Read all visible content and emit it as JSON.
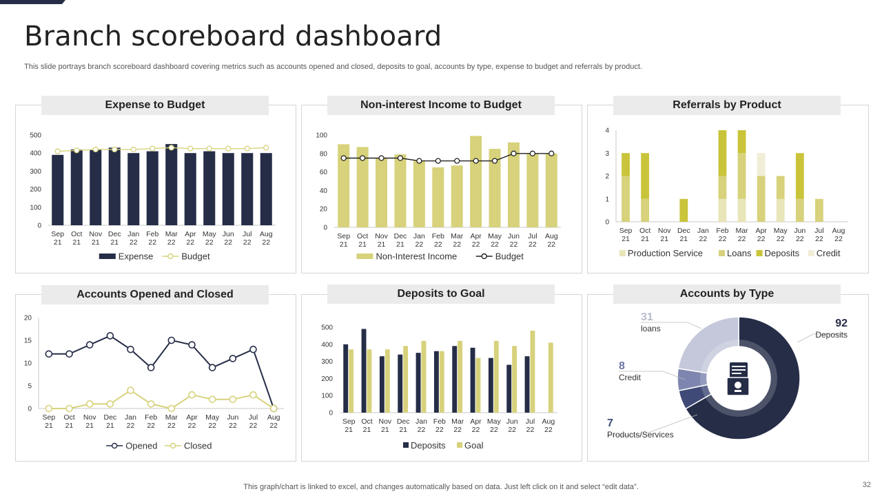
{
  "page": {
    "title": "Branch scoreboard dashboard",
    "subtitle": "This slide portrays branch scoreboard dashboard covering metrics such as accounts opened and closed, deposits to goal, accounts by type, expense to budget and referrals by product.",
    "footer": "This graph/chart is linked to excel, and changes automatically based on data. Just left click on it and select “edit data”.",
    "page_number": "32"
  },
  "colors": {
    "navy": "#252d47",
    "olive": "#c9c43a",
    "khaki": "#d7d27b",
    "pale": "#e8e5b8",
    "light": "#f0eed6",
    "grey": "#3d4255"
  },
  "panels": {
    "expense": {
      "heading": "Expense to Budget"
    },
    "income": {
      "heading": "Non-interest Income to Budget"
    },
    "referrals": {
      "heading": "Referrals by Product"
    },
    "accounts": {
      "heading": "Accounts Opened and Closed"
    },
    "deposits": {
      "heading": "Deposits to Goal"
    },
    "types": {
      "heading": "Accounts by Type",
      "icon": "document-icon"
    }
  },
  "chart_data": [
    {
      "id": "expense",
      "type": "bar",
      "title": "Expense to Budget",
      "categories": [
        "Sep 21",
        "Oct 21",
        "Nov 21",
        "Dec 21",
        "Jan 22",
        "Feb 22",
        "Mar 22",
        "Apr 22",
        "May 22",
        "Jun 22",
        "Jul 22",
        "Aug 22"
      ],
      "series": [
        {
          "name": "Expense",
          "kind": "bar",
          "values": [
            390,
            420,
            420,
            430,
            400,
            410,
            450,
            400,
            410,
            400,
            400,
            400
          ]
        },
        {
          "name": "Budget",
          "kind": "line",
          "values": [
            410,
            415,
            420,
            420,
            420,
            425,
            430,
            425,
            425,
            425,
            425,
            430
          ]
        }
      ],
      "ylim": [
        0,
        500
      ],
      "yticks": [
        0,
        100,
        200,
        300,
        400,
        500
      ]
    },
    {
      "id": "income",
      "type": "bar",
      "title": "Non-interest Income to Budget",
      "categories": [
        "Sep 21",
        "Oct 21",
        "Nov 21",
        "Dec 21",
        "Jan 22",
        "Feb 22",
        "Mar 22",
        "Apr 22",
        "May 22",
        "Jun 22",
        "Jul 22",
        "Aug 22"
      ],
      "series": [
        {
          "name": "Non-Interest Income",
          "kind": "bar",
          "values": [
            90,
            87,
            75,
            79,
            72,
            65,
            67,
            99,
            85,
            92,
            80,
            80
          ]
        },
        {
          "name": "Budget",
          "kind": "line",
          "values": [
            75,
            75,
            75,
            75,
            72,
            72,
            72,
            72,
            72,
            80,
            80,
            80
          ]
        }
      ],
      "ylim": [
        0,
        100
      ],
      "yticks": [
        0,
        20,
        40,
        60,
        80,
        100
      ]
    },
    {
      "id": "referrals",
      "type": "bar",
      "stacked": true,
      "title": "Referrals by Product",
      "categories": [
        "Sep 21",
        "Oct 21",
        "Nov 21",
        "Dec 21",
        "Jan 22",
        "Feb 22",
        "Mar 22",
        "Apr 22",
        "May 22",
        "Jun 22",
        "Jul 22",
        "Aug 22"
      ],
      "series": [
        {
          "name": "Production Service",
          "values": [
            0,
            0,
            0,
            0,
            0,
            1,
            1,
            0,
            1,
            0,
            0,
            0
          ]
        },
        {
          "name": "Loans",
          "values": [
            2,
            1,
            0,
            0,
            0,
            1,
            2,
            2,
            1,
            1,
            1,
            0
          ]
        },
        {
          "name": "Deposits",
          "values": [
            1,
            2,
            0,
            1,
            0,
            2,
            1,
            0,
            0,
            2,
            0,
            0
          ]
        },
        {
          "name": "Credit",
          "values": [
            0,
            0,
            0,
            0,
            0,
            0,
            0,
            1,
            0,
            0,
            0,
            0
          ]
        }
      ],
      "ylim": [
        0,
        4
      ],
      "yticks": [
        0,
        1,
        2,
        3,
        4
      ]
    },
    {
      "id": "accounts",
      "type": "line",
      "title": "Accounts Opened and Closed",
      "categories": [
        "Sep 21",
        "Oct 21",
        "Nov 21",
        "Dec 21",
        "Jan 22",
        "Feb 22",
        "Mar 22",
        "Apr 22",
        "May 22",
        "Jun 22",
        "Jul 22",
        "Aug 22"
      ],
      "series": [
        {
          "name": "Opened",
          "values": [
            12,
            12,
            14,
            16,
            13,
            9,
            15,
            14,
            9,
            11,
            13,
            0
          ]
        },
        {
          "name": "Closed",
          "values": [
            0,
            0,
            1,
            1,
            4,
            1,
            0,
            3,
            2,
            2,
            3,
            0
          ]
        }
      ],
      "ylim": [
        0,
        20
      ],
      "yticks": [
        0,
        5,
        10,
        15,
        20
      ]
    },
    {
      "id": "deposits",
      "type": "bar",
      "title": "Deposits to Goal",
      "categories": [
        "Sep 21",
        "Oct 21",
        "Nov 21",
        "Dec 21",
        "Jan 22",
        "Feb 22",
        "Mar 22",
        "Apr 22",
        "May 22",
        "Jun 22",
        "Jul 22",
        "Aug 22"
      ],
      "series": [
        {
          "name": "Deposits",
          "values": [
            400,
            490,
            330,
            340,
            350,
            360,
            390,
            380,
            320,
            280,
            330,
            0
          ]
        },
        {
          "name": "Goal",
          "values": [
            370,
            370,
            370,
            390,
            420,
            360,
            420,
            320,
            420,
            390,
            480,
            410
          ]
        }
      ],
      "ylim": [
        0,
        500
      ],
      "yticks": [
        0,
        100,
        200,
        300,
        400,
        500
      ]
    },
    {
      "id": "types",
      "type": "pie",
      "title": "Accounts by Type",
      "slices": [
        {
          "label": "Deposits",
          "value": 92,
          "color": "#252d47"
        },
        {
          "label": "Products/Services",
          "value": 7,
          "color": "#3f4a77"
        },
        {
          "label": "Credit",
          "value": 8,
          "color": "#7e86b0"
        },
        {
          "label": "loans",
          "value": 31,
          "color": "#c5c8da"
        }
      ]
    }
  ]
}
